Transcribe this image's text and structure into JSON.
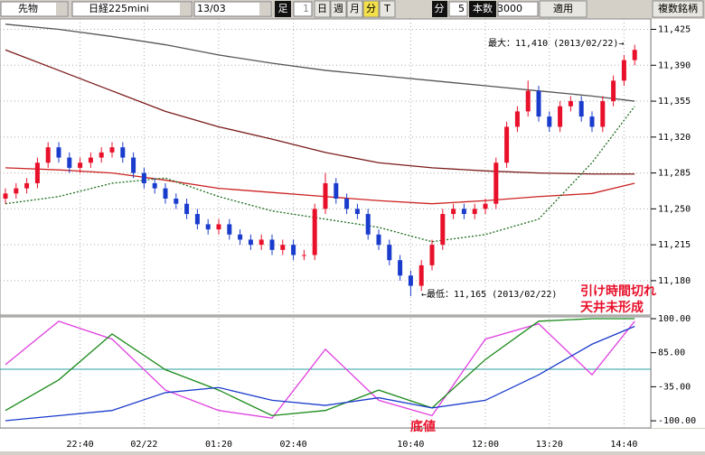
{
  "toolbar": {
    "market": "先物",
    "symbol": "日経225mini",
    "contract": "13/03",
    "ashi": "足",
    "ashi_value": 1,
    "periods": [
      "日",
      "週",
      "月",
      "分",
      "T"
    ],
    "unit": "分",
    "unit_value": 5,
    "count_label": "本数",
    "count": 3000,
    "apply": "適用",
    "multi": "複数銘柄"
  },
  "chart_data": {
    "type": "candlestick",
    "categories": [
      null,
      null,
      null,
      null,
      null,
      null,
      null,
      "22:40",
      null,
      null,
      null,
      null,
      null,
      "02/22",
      null,
      null,
      null,
      null,
      null,
      null,
      "01:20",
      null,
      null,
      null,
      null,
      null,
      null,
      "02:40",
      null,
      null,
      null,
      null,
      null,
      null,
      null,
      null,
      null,
      null,
      "10:40",
      null,
      null,
      null,
      null,
      null,
      null,
      "12:00",
      null,
      null,
      null,
      null,
      null,
      "13:20",
      null,
      null,
      null,
      null,
      null,
      null,
      "14:40",
      null
    ],
    "open": [
      11260,
      11265,
      11270,
      11275,
      11295,
      11310,
      11300,
      11290,
      11295,
      11300,
      11305,
      11310,
      11300,
      11285,
      11275,
      11270,
      11260,
      11255,
      11245,
      11235,
      11230,
      11235,
      11225,
      11220,
      11215,
      11220,
      11210,
      11215,
      11205,
      11205,
      11250,
      11275,
      11260,
      11250,
      11245,
      11225,
      11215,
      11200,
      11185,
      11175,
      11195,
      11215,
      11245,
      11250,
      11245,
      11250,
      11255,
      11295,
      11330,
      11345,
      11365,
      11340,
      11330,
      11350,
      11355,
      11340,
      11330,
      11355,
      11375,
      11395
    ],
    "high": [
      11270,
      11275,
      11280,
      11300,
      11315,
      11315,
      11305,
      11300,
      11305,
      11310,
      11315,
      11315,
      11305,
      11290,
      11280,
      11275,
      11265,
      11260,
      11250,
      11240,
      11240,
      11240,
      11230,
      11225,
      11225,
      11225,
      11220,
      11220,
      11210,
      11255,
      11285,
      11280,
      11265,
      11255,
      11250,
      11230,
      11220,
      11205,
      11190,
      11200,
      11220,
      11250,
      11255,
      11255,
      11255,
      11260,
      11300,
      11335,
      11350,
      11375,
      11370,
      11345,
      11355,
      11360,
      11360,
      11345,
      11360,
      11380,
      11400,
      11410
    ],
    "low": [
      11255,
      11260,
      11265,
      11270,
      11290,
      11295,
      11285,
      11285,
      11290,
      11295,
      11300,
      11295,
      11280,
      11270,
      11265,
      11255,
      11250,
      11240,
      11230,
      11225,
      11225,
      11220,
      11215,
      11210,
      11210,
      11205,
      11205,
      11200,
      11200,
      11200,
      11245,
      11255,
      11245,
      11240,
      11220,
      11210,
      11195,
      11180,
      11165,
      11170,
      11190,
      11210,
      11240,
      11240,
      11240,
      11245,
      11250,
      11290,
      11325,
      11340,
      11335,
      11325,
      11325,
      11345,
      11335,
      11325,
      11325,
      11350,
      11370,
      11390
    ],
    "close": [
      11265,
      11270,
      11275,
      11295,
      11310,
      11300,
      11290,
      11295,
      11300,
      11305,
      11310,
      11300,
      11285,
      11275,
      11270,
      11260,
      11255,
      11245,
      11235,
      11230,
      11235,
      11225,
      11220,
      11215,
      11220,
      11210,
      11215,
      11205,
      11205,
      11250,
      11275,
      11260,
      11250,
      11245,
      11225,
      11215,
      11200,
      11185,
      11175,
      11195,
      11215,
      11245,
      11250,
      11245,
      11250,
      11255,
      11295,
      11330,
      11345,
      11365,
      11340,
      11330,
      11350,
      11355,
      11340,
      11330,
      11355,
      11375,
      11395,
      11405
    ],
    "up_color": "#e8102a",
    "down_color": "#1a3ccc",
    "lines": [
      {
        "color": "#555555",
        "x": [
          0,
          5,
          10,
          15,
          20,
          25,
          30,
          35,
          40,
          45,
          50,
          55,
          59
        ],
        "values": [
          11430,
          11425,
          11418,
          11410,
          11400,
          11392,
          11385,
          11380,
          11375,
          11370,
          11365,
          11360,
          11355
        ]
      },
      {
        "color": "#7a1a1a",
        "x": [
          0,
          5,
          10,
          15,
          20,
          25,
          30,
          35,
          40,
          45,
          50,
          55,
          59
        ],
        "values": [
          11405,
          11385,
          11365,
          11345,
          11330,
          11318,
          11305,
          11295,
          11290,
          11287,
          11285,
          11284,
          11284
        ]
      },
      {
        "color": "#cc2222",
        "x": [
          0,
          5,
          10,
          15,
          20,
          25,
          30,
          35,
          40,
          45,
          50,
          55,
          59
        ],
        "values": [
          11290,
          11288,
          11285,
          11278,
          11270,
          11266,
          11262,
          11258,
          11255,
          11258,
          11262,
          11265,
          11275
        ]
      },
      {
        "color": "#1a6a1a",
        "x": [
          0,
          5,
          10,
          15,
          20,
          25,
          30,
          35,
          40,
          45,
          50,
          55,
          59
        ],
        "values": [
          11255,
          11262,
          11275,
          11280,
          11262,
          11248,
          11240,
          11232,
          11218,
          11225,
          11240,
          11295,
          11350
        ]
      }
    ],
    "ylim": [
      11150,
      11436
    ],
    "yticks": [
      {
        "value": 11180,
        "label": "11,180"
      },
      {
        "value": 11215,
        "label": "11,215"
      },
      {
        "value": 11250,
        "label": "11,250"
      },
      {
        "value": 11285,
        "label": "11,285"
      },
      {
        "value": 11320,
        "label": "11,320"
      },
      {
        "value": 11355,
        "label": "11,355"
      },
      {
        "value": 11390,
        "label": "11,390"
      },
      {
        "value": 11425,
        "label": "11,425"
      }
    ],
    "max_label": "最大：11,410 (2013/02/22)→",
    "min_label": "←最低：11,165 (2013/02/22)",
    "annotations": [
      "引け時間切れ",
      "天井未形成",
      "底値"
    ],
    "oscillator": {
      "ylim": [
        -100,
        100
      ],
      "labels": [
        "100.00",
        "85.00",
        "-35.00",
        "-100.00"
      ],
      "series": [
        {
          "color": "#e040e0",
          "x": [
            0,
            5,
            10,
            15,
            20,
            25,
            30,
            35,
            40,
            45,
            50,
            55,
            59
          ],
          "values": [
            10,
            95,
            60,
            -40,
            -80,
            -95,
            40,
            -60,
            -90,
            60,
            90,
            -10,
            95
          ]
        },
        {
          "color": "#1a8a1a",
          "x": [
            0,
            5,
            10,
            15,
            20,
            25,
            30,
            35,
            40,
            45,
            50,
            55,
            59
          ],
          "values": [
            -80,
            -20,
            70,
            0,
            -40,
            -90,
            -80,
            -40,
            -75,
            20,
            95,
            100,
            100
          ]
        },
        {
          "color": "#1a3acc",
          "x": [
            0,
            5,
            10,
            15,
            20,
            25,
            30,
            35,
            40,
            45,
            50,
            55,
            59
          ],
          "values": [
            -100,
            -90,
            -80,
            -45,
            -35,
            -60,
            -70,
            -55,
            -75,
            -60,
            -10,
            50,
            85
          ]
        }
      ]
    }
  }
}
